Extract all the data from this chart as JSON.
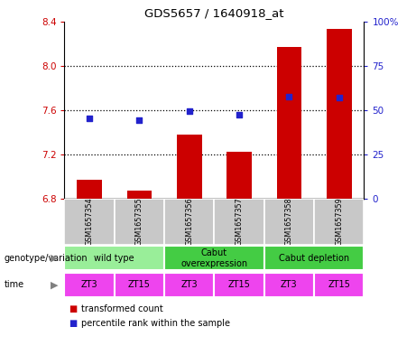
{
  "title": "GDS5657 / 1640918_at",
  "samples": [
    "GSM1657354",
    "GSM1657355",
    "GSM1657356",
    "GSM1657357",
    "GSM1657358",
    "GSM1657359"
  ],
  "bar_values": [
    6.97,
    6.875,
    7.38,
    7.22,
    8.17,
    8.33
  ],
  "scatter_values": [
    7.525,
    7.505,
    7.59,
    7.555,
    7.72,
    7.715
  ],
  "ylim_left": [
    6.8,
    8.4
  ],
  "ylim_right": [
    0,
    100
  ],
  "yticks_left": [
    6.8,
    7.2,
    7.6,
    8.0,
    8.4
  ],
  "yticks_right": [
    0,
    25,
    50,
    75,
    100
  ],
  "ytick_right_labels": [
    "0",
    "25",
    "50",
    "75",
    "100%"
  ],
  "bar_color": "#cc0000",
  "scatter_color": "#2222cc",
  "bar_bottom": 6.8,
  "genotype_groups": [
    {
      "label": "wild type",
      "span": [
        0,
        2
      ],
      "color": "#99ee99"
    },
    {
      "label": "Cabut\noverexpression",
      "span": [
        2,
        4
      ],
      "color": "#44cc44"
    },
    {
      "label": "Cabut depletion",
      "span": [
        4,
        6
      ],
      "color": "#44cc44"
    }
  ],
  "time_labels": [
    "ZT3",
    "ZT15",
    "ZT3",
    "ZT15",
    "ZT3",
    "ZT15"
  ],
  "time_color": "#ee44ee",
  "sample_bg_color": "#c8c8c8",
  "left_tick_color": "#cc0000",
  "right_tick_color": "#2222cc",
  "legend_items": [
    {
      "label": "transformed count",
      "color": "#cc0000"
    },
    {
      "label": "percentile rank within the sample",
      "color": "#2222cc"
    }
  ],
  "grid_lines": [
    7.2,
    7.6,
    8.0
  ],
  "bar_width": 0.5
}
